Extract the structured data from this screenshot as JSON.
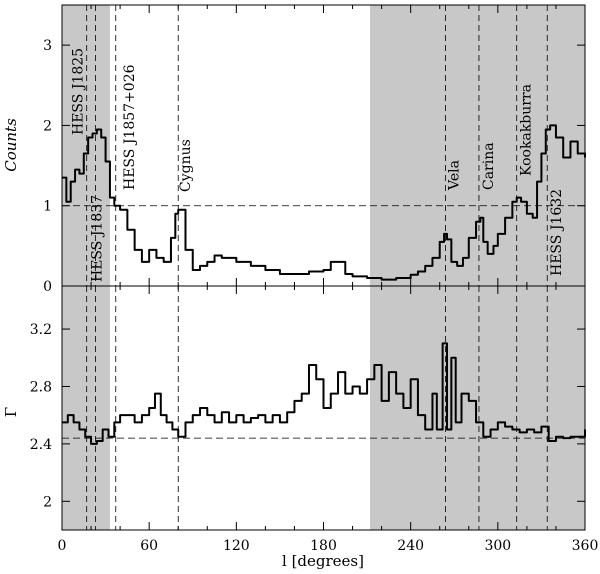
{
  "chart_data": [
    {
      "type": "line",
      "panel": "top",
      "ylabel": "Counts",
      "xlim": [
        0,
        360
      ],
      "ylim": [
        0,
        3.5
      ],
      "yticks": [
        0,
        1,
        2,
        3
      ],
      "grid": false,
      "shaded_regions": [
        [
          0,
          33
        ],
        [
          212,
          360
        ]
      ],
      "reference_line_y": 1,
      "series": [
        {
          "x": [
            0,
            3,
            6,
            9,
            12,
            15,
            18,
            21,
            24,
            27,
            30,
            33,
            36,
            40,
            45,
            50,
            55,
            60,
            65,
            70,
            75,
            78,
            80,
            85,
            90,
            95,
            100,
            105,
            110,
            120,
            130,
            140,
            150,
            160,
            170,
            180,
            185,
            190,
            195,
            200,
            210,
            220,
            230,
            240,
            245,
            250,
            255,
            260,
            263,
            265,
            268,
            272,
            276,
            280,
            285,
            288,
            290,
            293,
            297,
            300,
            305,
            310,
            313,
            316,
            320,
            324,
            327,
            330,
            333,
            336,
            340,
            345,
            350,
            355,
            360
          ],
          "y": [
            1.35,
            1.05,
            1.3,
            1.45,
            1.4,
            1.65,
            1.85,
            1.9,
            1.95,
            1.85,
            1.55,
            1.1,
            1.0,
            0.95,
            0.7,
            0.45,
            0.3,
            0.45,
            0.35,
            0.3,
            0.6,
            0.9,
            0.95,
            0.45,
            0.2,
            0.25,
            0.3,
            0.38,
            0.35,
            0.3,
            0.25,
            0.2,
            0.15,
            0.15,
            0.18,
            0.2,
            0.3,
            0.3,
            0.15,
            0.12,
            0.1,
            0.08,
            0.1,
            0.14,
            0.18,
            0.25,
            0.35,
            0.55,
            0.65,
            0.58,
            0.3,
            0.25,
            0.35,
            0.6,
            0.8,
            0.85,
            0.55,
            0.4,
            0.5,
            0.65,
            0.85,
            1.05,
            1.1,
            1.05,
            0.9,
            0.85,
            1.3,
            1.65,
            1.95,
            2.0,
            1.85,
            1.6,
            1.8,
            1.65,
            1.6
          ]
        }
      ],
      "annotations": [
        {
          "text": "HESS J1825",
          "x": 17
        },
        {
          "text": "HESS J1837",
          "x": 23
        },
        {
          "text": "HESS J1857+026",
          "x": 37
        },
        {
          "text": "Cygnus",
          "x": 80
        },
        {
          "text": "Vela",
          "x": 264
        },
        {
          "text": "Carina",
          "x": 287
        },
        {
          "text": "Kookakburra",
          "x": 313
        },
        {
          "text": "HESS J1632",
          "x": 334
        }
      ]
    },
    {
      "type": "line",
      "panel": "bottom",
      "ylabel": "Γ",
      "xlabel": "l [degrees]",
      "xlim": [
        0,
        360
      ],
      "ylim": [
        1.8,
        3.5
      ],
      "yticks": [
        2,
        2.4,
        2.8,
        3.2
      ],
      "xticks": [
        0,
        60,
        120,
        180,
        240,
        300,
        360
      ],
      "grid": false,
      "shaded_regions": [
        [
          0,
          33
        ],
        [
          212,
          360
        ]
      ],
      "reference_line_y": 2.44,
      "series": [
        {
          "x": [
            0,
            4,
            8,
            12,
            16,
            20,
            24,
            28,
            32,
            36,
            40,
            45,
            50,
            55,
            60,
            64,
            68,
            72,
            76,
            80,
            85,
            90,
            95,
            100,
            105,
            110,
            115,
            120,
            125,
            130,
            135,
            140,
            145,
            150,
            155,
            160,
            165,
            170,
            175,
            180,
            185,
            190,
            195,
            200,
            205,
            210,
            215,
            220,
            225,
            230,
            235,
            240,
            245,
            250,
            255,
            258,
            262,
            265,
            268,
            271,
            275,
            280,
            285,
            290,
            295,
            300,
            305,
            310,
            315,
            320,
            325,
            330,
            335,
            340,
            345,
            350,
            355,
            360
          ],
          "y": [
            2.55,
            2.6,
            2.55,
            2.5,
            2.45,
            2.4,
            2.42,
            2.5,
            2.45,
            2.55,
            2.6,
            2.6,
            2.55,
            2.6,
            2.65,
            2.75,
            2.6,
            2.55,
            2.5,
            2.45,
            2.55,
            2.6,
            2.65,
            2.6,
            2.55,
            2.62,
            2.55,
            2.6,
            2.55,
            2.58,
            2.6,
            2.55,
            2.6,
            2.55,
            2.62,
            2.7,
            2.75,
            2.95,
            2.85,
            2.65,
            2.75,
            2.9,
            2.75,
            2.8,
            2.75,
            2.85,
            2.95,
            2.7,
            2.9,
            2.75,
            2.65,
            2.85,
            2.6,
            2.5,
            2.75,
            2.5,
            3.1,
            2.5,
            3.0,
            2.55,
            2.75,
            2.7,
            2.55,
            2.45,
            2.5,
            2.55,
            2.52,
            2.5,
            2.48,
            2.5,
            2.48,
            2.52,
            2.42,
            2.45,
            2.44,
            2.45,
            2.45,
            2.5
          ]
        }
      ]
    }
  ]
}
